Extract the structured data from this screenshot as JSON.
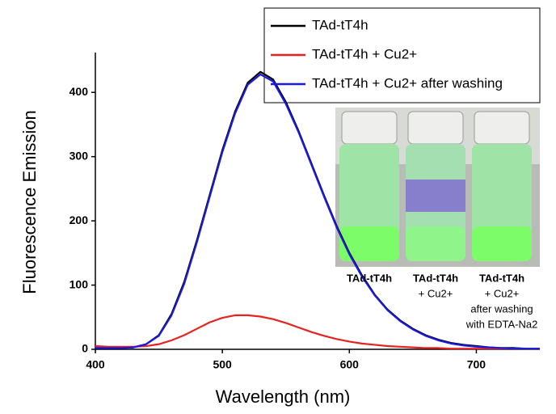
{
  "chart_data": {
    "type": "line",
    "x_label": "Wavelength (nm)",
    "y_label": "Fluorescence Emission",
    "x": [
      400,
      410,
      420,
      430,
      440,
      450,
      460,
      470,
      480,
      490,
      500,
      510,
      520,
      530,
      540,
      550,
      560,
      570,
      580,
      590,
      600,
      610,
      620,
      630,
      640,
      650,
      660,
      670,
      680,
      690,
      700,
      710,
      720,
      730,
      740,
      750
    ],
    "series": [
      {
        "name": "TAd-tT4h",
        "color": "#000000",
        "values": [
          2,
          2,
          2,
          3,
          8,
          22,
          55,
          105,
          170,
          240,
          310,
          370,
          415,
          432,
          420,
          385,
          340,
          290,
          240,
          192,
          150,
          115,
          85,
          62,
          45,
          32,
          22,
          15,
          10,
          7,
          5,
          3,
          2,
          2,
          1,
          1
        ]
      },
      {
        "name": "TAd-tT4h + Cu2+",
        "color": "#e8231f",
        "values": [
          5,
          4,
          4,
          4,
          5,
          8,
          14,
          22,
          32,
          42,
          49,
          53,
          53,
          51,
          47,
          41,
          34,
          27,
          21,
          16,
          12,
          9,
          7,
          5,
          4,
          3,
          2,
          2,
          1,
          1,
          1,
          1,
          1,
          1,
          1,
          1
        ]
      },
      {
        "name": "TAd-tT4h + Cu2+ after washing",
        "color": "#1a1ae0",
        "values": [
          2,
          2,
          2,
          3,
          8,
          21,
          53,
          102,
          167,
          237,
          307,
          367,
          412,
          428,
          417,
          382,
          338,
          288,
          238,
          190,
          148,
          113,
          84,
          61,
          44,
          31,
          21,
          14,
          9,
          6,
          4,
          3,
          2,
          1,
          1,
          1
        ]
      }
    ],
    "xlim": [
      400,
      750
    ],
    "ylim": [
      0,
      462
    ],
    "xticks": [
      400,
      500,
      600,
      700
    ],
    "yticks": [
      0,
      100,
      200,
      300,
      400
    ],
    "inset_labels": [
      [
        "TAd-tT4h"
      ],
      [
        "TAd-tT4h",
        "+ Cu2+"
      ],
      [
        "TAd-tT4h",
        "+ Cu2+",
        "after washing",
        "with EDTA-Na2"
      ]
    ]
  }
}
